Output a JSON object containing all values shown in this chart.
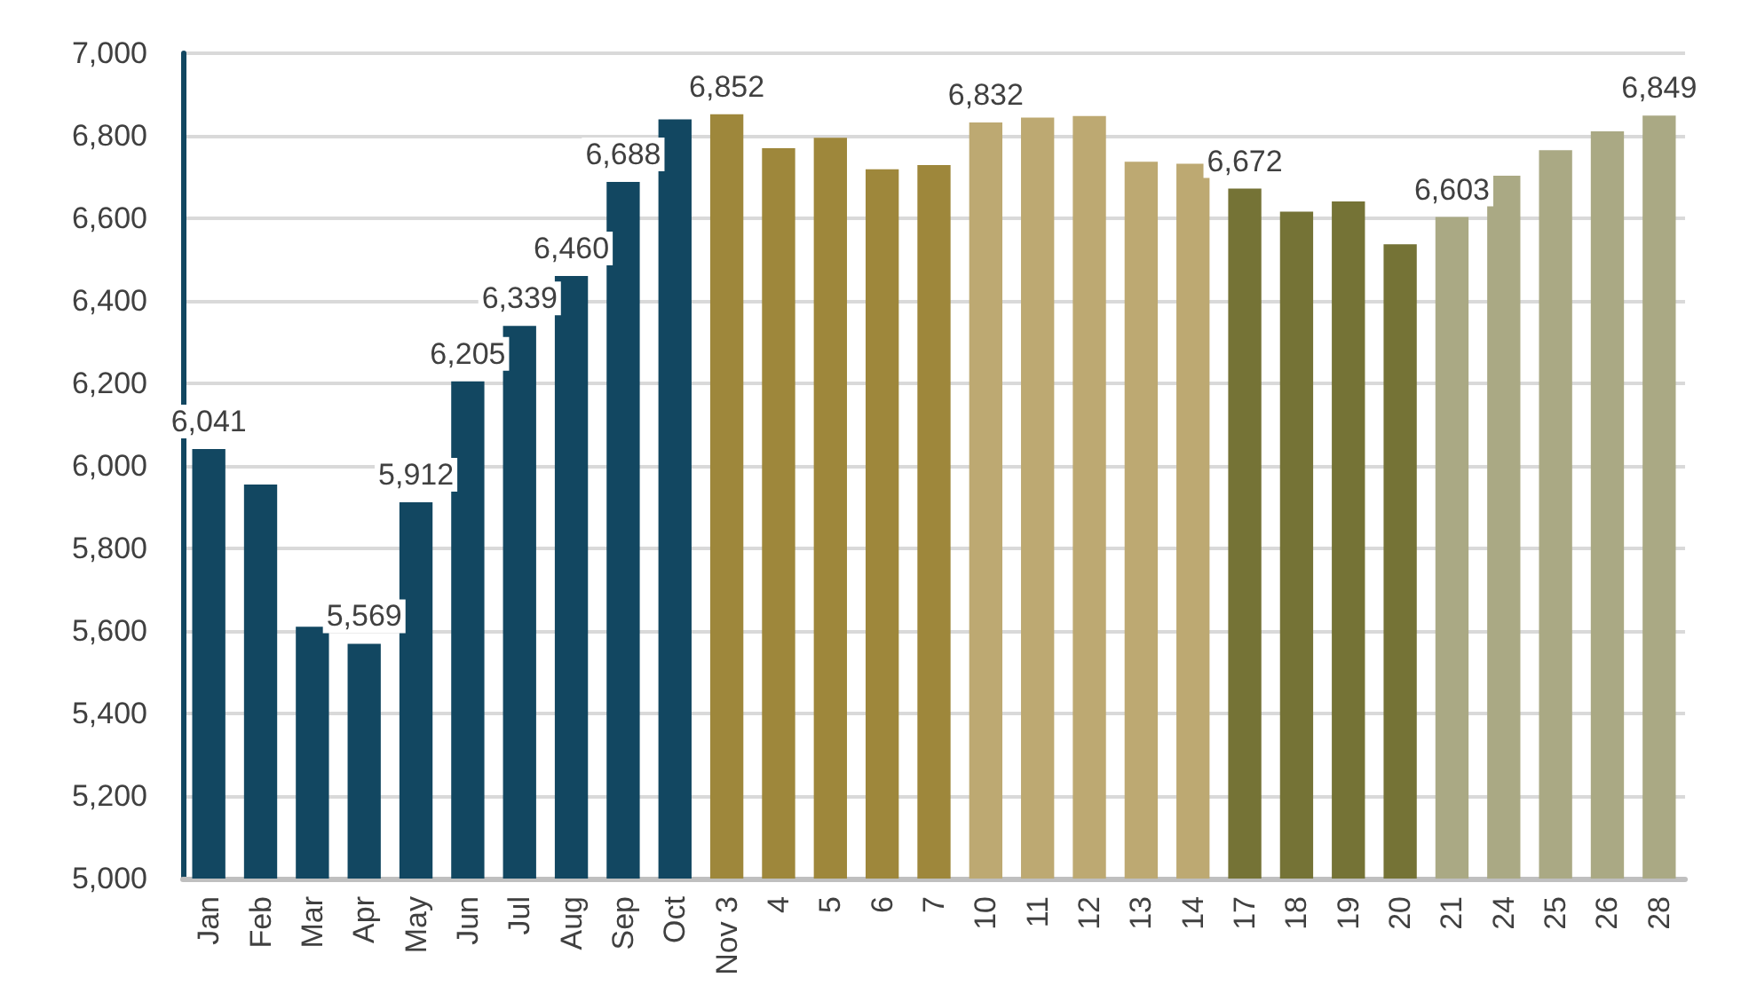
{
  "chart_data": {
    "type": "bar",
    "categories": [
      "Jan",
      "Feb",
      "Mar",
      "Apr",
      "May",
      "Jun",
      "Jul",
      "Aug",
      "Sep",
      "Oct",
      "Nov 3",
      "4",
      "5",
      "6",
      "7",
      "10",
      "11",
      "12",
      "13",
      "14",
      "17",
      "18",
      "19",
      "20",
      "21",
      "24",
      "25",
      "26",
      "28"
    ],
    "values": [
      6041,
      5955,
      5610,
      5569,
      5912,
      6205,
      6339,
      6460,
      6688,
      6840,
      6852,
      6770,
      6795,
      6719,
      6729,
      6832,
      6844,
      6848,
      6737,
      6732,
      6672,
      6616,
      6641,
      6537,
      6603,
      6703,
      6765,
      6811,
      6849
    ],
    "value_labels": [
      "6,041",
      null,
      null,
      "5,569",
      "5,912",
      "6,205",
      "6,339",
      "6,460",
      "6,688",
      null,
      "6,852",
      null,
      null,
      null,
      null,
      "6,832",
      null,
      null,
      null,
      null,
      "6,672",
      null,
      null,
      null,
      "6,603",
      null,
      null,
      null,
      "6,849"
    ],
    "colors": [
      "#124761",
      "#124761",
      "#124761",
      "#124761",
      "#124761",
      "#124761",
      "#124761",
      "#124761",
      "#124761",
      "#124761",
      "#9e873b",
      "#9e873b",
      "#9e873b",
      "#9e873b",
      "#9e873b",
      "#bda972",
      "#bda972",
      "#bda972",
      "#bda972",
      "#bda972",
      "#757336",
      "#757336",
      "#757336",
      "#757336",
      "#aaa984",
      "#aaa984",
      "#aaa984",
      "#aaa984",
      "#aaa984"
    ],
    "ylim": [
      5000,
      7000
    ],
    "yticks": [
      {
        "value": 5000,
        "label": "5,000"
      },
      {
        "value": 5200,
        "label": "5,200"
      },
      {
        "value": 5400,
        "label": "5,400"
      },
      {
        "value": 5600,
        "label": "5,600"
      },
      {
        "value": 5800,
        "label": "5,800"
      },
      {
        "value": 6000,
        "label": "6,000"
      },
      {
        "value": 6200,
        "label": "6,200"
      },
      {
        "value": 6400,
        "label": "6,400"
      },
      {
        "value": 6600,
        "label": "6,600"
      },
      {
        "value": 6800,
        "label": "6,800"
      },
      {
        "value": 7000,
        "label": "7,000"
      }
    ],
    "grid": "y"
  }
}
